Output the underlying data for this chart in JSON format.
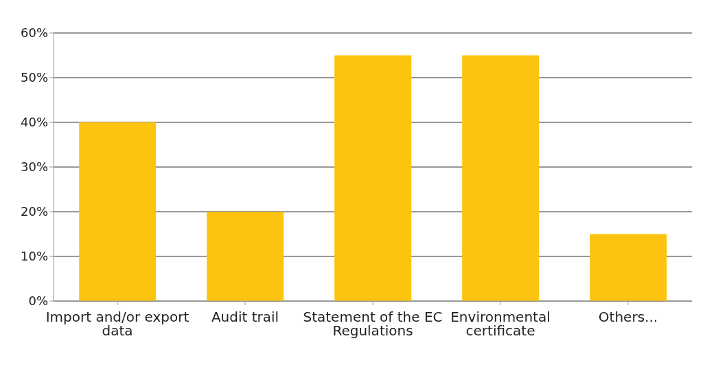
{
  "chart_data": {
    "type": "bar",
    "categories": [
      "Import and/or export data",
      "Audit trail",
      "Statement of the EC Regulations",
      "Environmental certificate",
      "Others..."
    ],
    "values": [
      40,
      20,
      55,
      55,
      15
    ],
    "color": "#fcc30f",
    "ylim": [
      0,
      60
    ],
    "yticks": [
      {
        "value": 0,
        "label": "0%"
      },
      {
        "value": 10,
        "label": "10%"
      },
      {
        "value": 20,
        "label": "20%"
      },
      {
        "value": 30,
        "label": "30%"
      },
      {
        "value": 40,
        "label": "40%"
      },
      {
        "value": 50,
        "label": "50%"
      },
      {
        "value": 60,
        "label": "60%"
      }
    ],
    "grid": "y"
  }
}
